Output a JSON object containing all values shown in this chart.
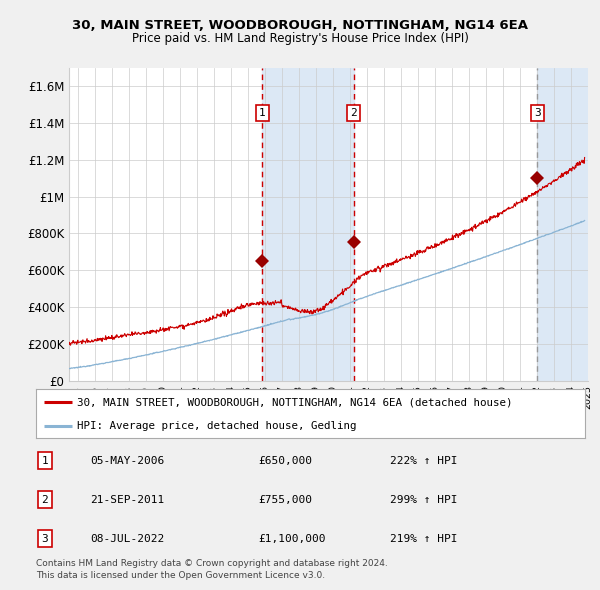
{
  "title1": "30, MAIN STREET, WOODBOROUGH, NOTTINGHAM, NG14 6EA",
  "title2": "Price paid vs. HM Land Registry's House Price Index (HPI)",
  "ylim": [
    0,
    1700000
  ],
  "xlim_start": 1995.0,
  "xlim_end": 2025.5,
  "yticks": [
    0,
    200000,
    400000,
    600000,
    800000,
    1000000,
    1200000,
    1400000,
    1600000
  ],
  "ytick_labels": [
    "£0",
    "£200K",
    "£400K",
    "£600K",
    "£800K",
    "£1M",
    "£1.2M",
    "£1.4M",
    "£1.6M"
  ],
  "xtick_years": [
    1995,
    1996,
    1997,
    1998,
    1999,
    2000,
    2001,
    2002,
    2003,
    2004,
    2005,
    2006,
    2007,
    2008,
    2009,
    2010,
    2011,
    2012,
    2013,
    2014,
    2015,
    2016,
    2017,
    2018,
    2019,
    2020,
    2021,
    2022,
    2023,
    2024,
    2025
  ],
  "sale1_x": 2006.35,
  "sale1_y": 650000,
  "sale1_label": "1",
  "sale2_x": 2011.72,
  "sale2_y": 755000,
  "sale2_label": "2",
  "sale3_x": 2022.52,
  "sale3_y": 1100000,
  "sale3_label": "3",
  "legend_red_label": "30, MAIN STREET, WOODBOROUGH, NOTTINGHAM, NG14 6EA (detached house)",
  "legend_blue_label": "HPI: Average price, detached house, Gedling",
  "table_rows": [
    {
      "num": "1",
      "date": "05-MAY-2006",
      "price": "£650,000",
      "hpi": "222% ↑ HPI"
    },
    {
      "num": "2",
      "date": "21-SEP-2011",
      "price": "£755,000",
      "hpi": "299% ↑ HPI"
    },
    {
      "num": "3",
      "date": "08-JUL-2022",
      "price": "£1,100,000",
      "hpi": "219% ↑ HPI"
    }
  ],
  "footnote1": "Contains HM Land Registry data © Crown copyright and database right 2024.",
  "footnote2": "This data is licensed under the Open Government Licence v3.0.",
  "fig_bg": "#f0f0f0",
  "plot_bg": "#ffffff",
  "red_line_color": "#cc0000",
  "blue_line_color": "#8ab4d4",
  "sale_dot_color": "#990000",
  "vline_color_red": "#cc0000",
  "vline_color_grey": "#999999",
  "shade_color": "#dce8f5",
  "grid_color": "#cccccc"
}
